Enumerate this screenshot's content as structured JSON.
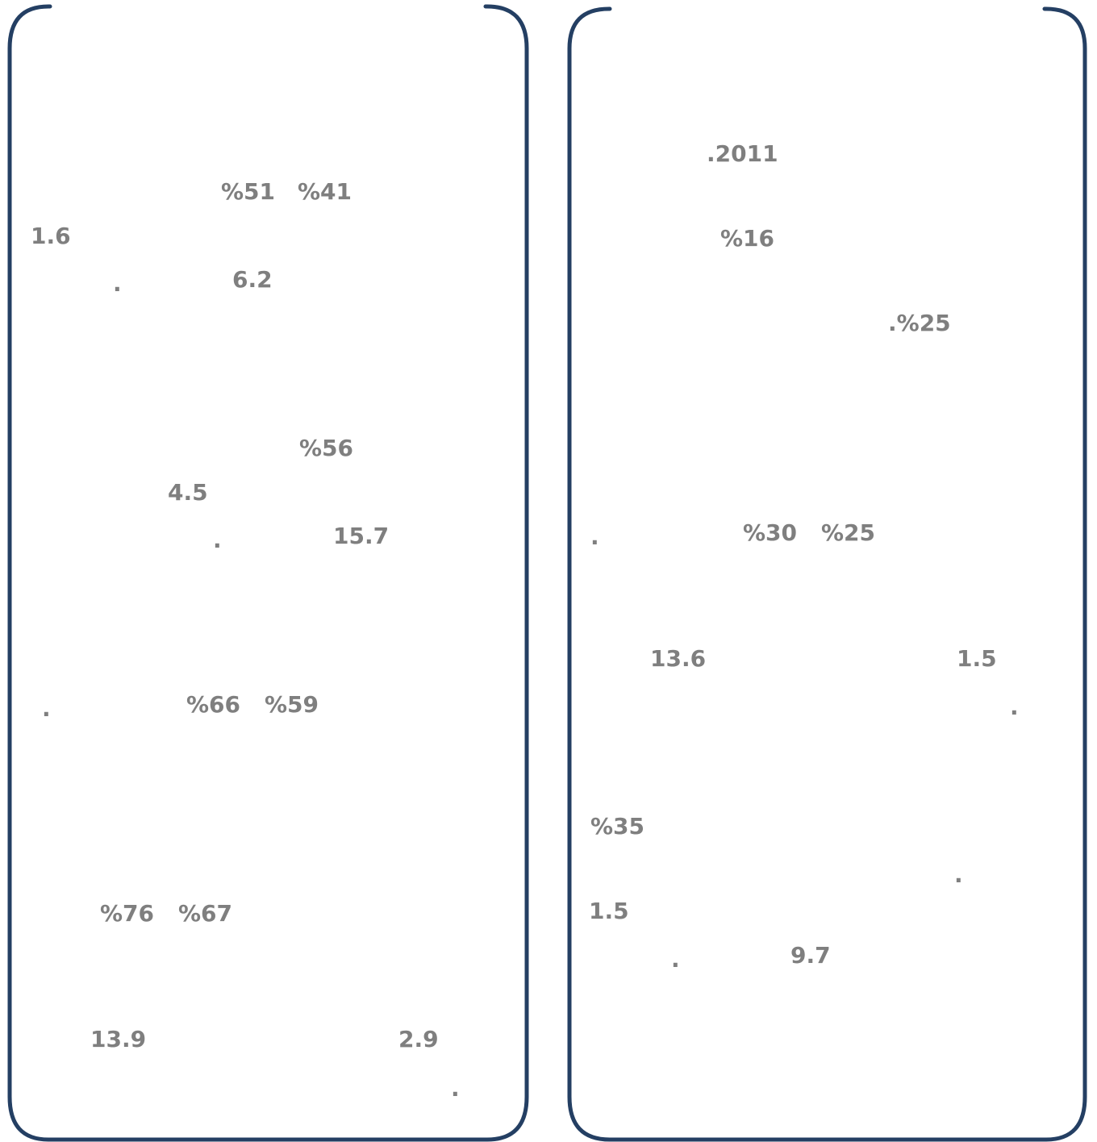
{
  "left_panel": {
    "p1_a": "%51",
    "p1_b": "%41",
    "p1_c": "1.6",
    "p1_d": "6.2",
    "p1_end": ".",
    "p2_a": "%56",
    "p2_b": "4.5",
    "p2_c": "15.7",
    "p2_end": ".",
    "p3_a": "%66",
    "p3_b": "%59",
    "p3_end": ".",
    "p4_a": "%76",
    "p4_b": "%67",
    "p4_c": "13.9",
    "p4_d": "2.9",
    "p4_end": "."
  },
  "right_panel": {
    "p1_a": ".2011",
    "p1_b": "%16",
    "p1_c": ".%25",
    "p2_a": "%30",
    "p2_b": "%25",
    "p2_end": ".",
    "p2_c": "13.6",
    "p2_d": "1.5",
    "p2_end2": ".",
    "p3_a": "%35",
    "p3_end": ".",
    "p3_b": "1.5",
    "p3_c": "9.7",
    "p3_end2": "."
  },
  "colors": {
    "frame": "#243f63",
    "text": "#7f7f7f",
    "background": "#ffffff"
  }
}
